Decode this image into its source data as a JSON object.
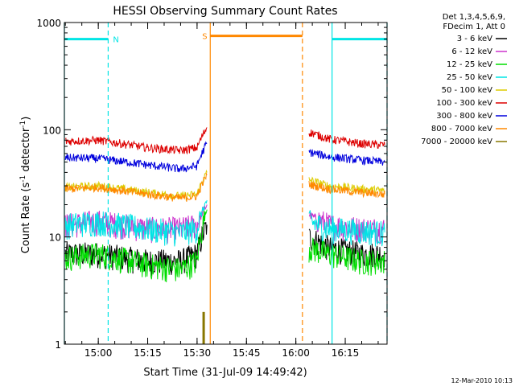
{
  "chart_data": {
    "type": "line",
    "title": "HESSI Observing Summary Count Rates",
    "xlabel": "Start Time (31-Jul-09 14:49:42)",
    "ylabel": "Count Rate (s⁻¹ detector⁻¹)",
    "ylabel_parts": {
      "pre": "Count Rate (s",
      "sup1": "-1",
      "mid": " detector",
      "sup2": "-1",
      "post": ")"
    },
    "y_scale": "log",
    "ylim": [
      1,
      1000
    ],
    "xlim": [
      "14:49:42",
      "16:27:42"
    ],
    "x_ticks": [
      "15:00",
      "15:15",
      "15:30",
      "15:45",
      "16:00",
      "16:15"
    ],
    "y_ticks": [
      "1",
      "10",
      "100",
      "1000"
    ],
    "legend_header": [
      "Det 1,3,4,5,6,9,",
      "FDecim 1, Att 0"
    ],
    "legend_placement": "right",
    "footer": "12-Mar-2010 10:13",
    "series": [
      {
        "name": "3 - 6 keV",
        "color": "#000000",
        "points": [
          [
            "14:50",
            7
          ],
          [
            "15:00",
            7
          ],
          [
            "15:15",
            6
          ],
          [
            "15:25",
            6
          ],
          [
            "15:30",
            7
          ],
          [
            "15:33",
            13
          ],
          [
            "16:04",
            10
          ],
          [
            "16:10",
            8
          ],
          [
            "16:20",
            7
          ],
          [
            "16:27",
            7
          ]
        ]
      },
      {
        "name": "6 - 12 keV",
        "color": "#cc33cc",
        "points": [
          [
            "14:50",
            13
          ],
          [
            "15:00",
            14
          ],
          [
            "15:15",
            12
          ],
          [
            "15:25",
            12
          ],
          [
            "15:30",
            13
          ],
          [
            "15:33",
            20
          ],
          [
            "16:04",
            16
          ],
          [
            "16:10",
            13
          ],
          [
            "16:20",
            12
          ],
          [
            "16:27",
            12
          ]
        ]
      },
      {
        "name": "12 - 25 keV",
        "color": "#00dd00",
        "points": [
          [
            "14:50",
            6.5
          ],
          [
            "15:00",
            7
          ],
          [
            "15:15",
            5.5
          ],
          [
            "15:25",
            5
          ],
          [
            "15:30",
            6
          ],
          [
            "15:33",
            18
          ],
          [
            "16:04",
            8
          ],
          [
            "16:10",
            7
          ],
          [
            "16:20",
            6
          ],
          [
            "16:27",
            6
          ]
        ]
      },
      {
        "name": "25 - 50 keV",
        "color": "#00e5e5",
        "points": [
          [
            "14:50",
            13
          ],
          [
            "15:00",
            14
          ],
          [
            "15:15",
            12
          ],
          [
            "15:25",
            11
          ],
          [
            "15:30",
            12
          ],
          [
            "15:33",
            22
          ],
          [
            "16:04",
            14
          ],
          [
            "16:10",
            12
          ],
          [
            "16:20",
            11.5
          ],
          [
            "16:27",
            11
          ]
        ]
      },
      {
        "name": "50 - 100 keV",
        "color": "#ddcc00",
        "points": [
          [
            "14:50",
            29
          ],
          [
            "15:00",
            30
          ],
          [
            "15:15",
            26
          ],
          [
            "15:25",
            24
          ],
          [
            "15:30",
            25
          ],
          [
            "15:33",
            40
          ],
          [
            "16:04",
            34
          ],
          [
            "16:10",
            30
          ],
          [
            "16:20",
            28
          ],
          [
            "16:27",
            27
          ]
        ]
      },
      {
        "name": "100 - 300 keV",
        "color": "#dd0000",
        "points": [
          [
            "14:50",
            78
          ],
          [
            "15:00",
            80
          ],
          [
            "15:15",
            68
          ],
          [
            "15:25",
            64
          ],
          [
            "15:30",
            68
          ],
          [
            "15:33",
            105
          ],
          [
            "16:04",
            95
          ],
          [
            "16:10",
            82
          ],
          [
            "16:20",
            74
          ],
          [
            "16:27",
            72
          ]
        ]
      },
      {
        "name": "300 - 800 keV",
        "color": "#0000dd",
        "points": [
          [
            "14:50",
            55
          ],
          [
            "15:00",
            54
          ],
          [
            "15:15",
            47
          ],
          [
            "15:25",
            43
          ],
          [
            "15:30",
            46
          ],
          [
            "15:33",
            75
          ],
          [
            "16:04",
            62
          ],
          [
            "16:10",
            56
          ],
          [
            "16:20",
            52
          ],
          [
            "16:27",
            50
          ]
        ]
      },
      {
        "name": "800 - 7000 keV",
        "color": "#ff8800",
        "points": [
          [
            "14:50",
            28
          ],
          [
            "15:00",
            29
          ],
          [
            "15:15",
            25
          ],
          [
            "15:25",
            23
          ],
          [
            "15:30",
            24
          ],
          [
            "15:33",
            38
          ],
          [
            "16:04",
            31
          ],
          [
            "16:10",
            28
          ],
          [
            "16:20",
            26
          ],
          [
            "16:27",
            25
          ]
        ]
      },
      {
        "name": "7000 - 20000 keV",
        "color": "#887700",
        "points": [
          [
            "15:32",
            1
          ],
          [
            "15:32",
            2
          ]
        ]
      }
    ],
    "flags": [
      {
        "label": "N",
        "color": "#00e5e5",
        "y": 700,
        "segments": [
          [
            "14:49:42",
            "15:03"
          ],
          [
            "16:11",
            "16:27:42"
          ]
        ],
        "solid": [
          "14:49:42",
          "16:11"
        ],
        "dashed": [
          "15:03",
          "16:27:42"
        ]
      },
      {
        "label": "S",
        "color": "#ff8800",
        "y": 750,
        "segments": [
          [
            "15:34",
            "16:02"
          ]
        ],
        "solid": [
          "15:34"
        ],
        "dashed": [
          "16:02"
        ]
      }
    ]
  }
}
